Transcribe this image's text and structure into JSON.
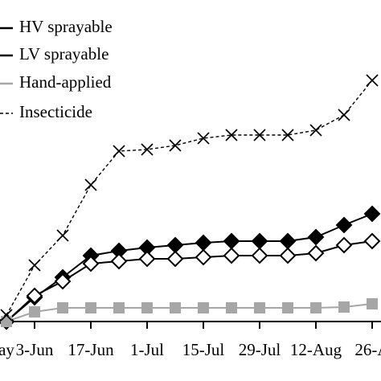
{
  "chart_data": {
    "type": "line",
    "categories": [
      "ay",
      "3-Jun",
      null,
      "17-Jun",
      null,
      "1-Jul",
      null,
      "15-Jul",
      null,
      "29-Jul",
      null,
      "12-Aug",
      null,
      "26-A"
    ],
    "ylim": [
      0,
      400
    ],
    "legend": "upper left",
    "series": [
      {
        "name": "HV sprayable",
        "color": "#000000",
        "marker": "diamond-filled",
        "dash": false,
        "values": [
          0,
          30,
          55,
          82,
          88,
          92,
          95,
          98,
          100,
          100,
          100,
          105,
          120,
          134
        ]
      },
      {
        "name": "LV sprayable",
        "color": "#000000",
        "marker": "diamond-open",
        "dash": false,
        "values": [
          0,
          32,
          50,
          72,
          75,
          78,
          78,
          80,
          82,
          82,
          82,
          85,
          95,
          100
        ]
      },
      {
        "name": "Hand-applied",
        "color": "#a6a6a6",
        "marker": "square",
        "dash": false,
        "values": [
          0,
          12,
          17,
          17,
          17,
          17,
          17,
          17,
          17,
          17,
          17,
          17,
          18,
          22
        ]
      },
      {
        "name": "Insecticide",
        "color": "#000000",
        "marker": "x",
        "dash": true,
        "values": [
          8,
          70,
          107,
          170,
          212,
          214,
          219,
          228,
          232,
          232,
          232,
          238,
          257,
          300
        ]
      }
    ]
  }
}
